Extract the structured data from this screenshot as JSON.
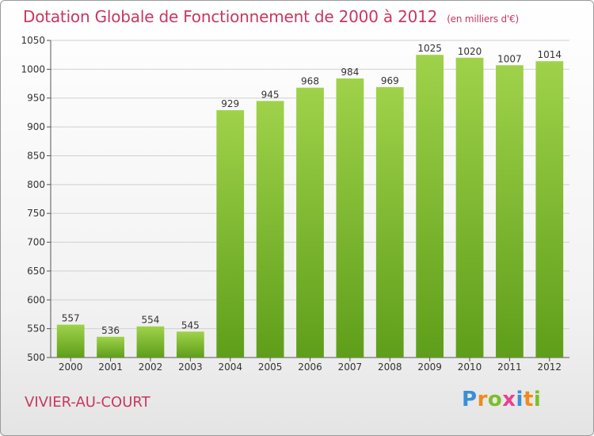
{
  "header": {
    "title": "Dotation Globale de Fonctionnement de 2000 à 2012",
    "unit": "(en milliers d'€)"
  },
  "footer": {
    "commune": "VIVIER-AU-COURT",
    "logo": "Proxiti"
  },
  "colors": {
    "accent": "#c8385e",
    "bar_top": "#9fd24a",
    "bar_bottom": "#5f9e1a",
    "grid": "#d0d0d0"
  },
  "chart_data": {
    "type": "bar",
    "categories": [
      "2000",
      "2001",
      "2002",
      "2003",
      "2004",
      "2005",
      "2006",
      "2007",
      "2008",
      "2009",
      "2010",
      "2011",
      "2012"
    ],
    "values": [
      557,
      536,
      554,
      545,
      929,
      945,
      968,
      984,
      969,
      1025,
      1020,
      1007,
      1014
    ],
    "title": "Dotation Globale de Fonctionnement de 2000 à 2012",
    "xlabel": "",
    "ylabel": "",
    "ylim": [
      500,
      1050
    ],
    "yticks": [
      500,
      550,
      600,
      650,
      700,
      750,
      800,
      850,
      900,
      950,
      1000,
      1050
    ],
    "grid": true,
    "legend": "none"
  }
}
